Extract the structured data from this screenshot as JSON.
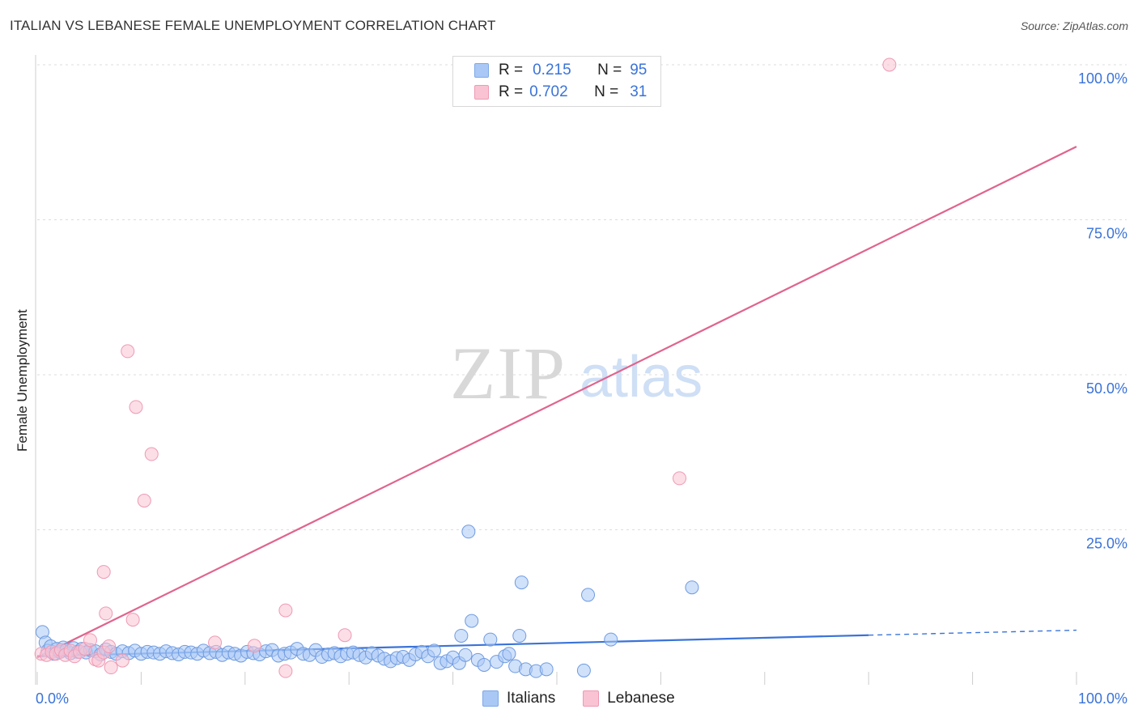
{
  "header": {
    "title": "ITALIAN VS LEBANESE FEMALE UNEMPLOYMENT CORRELATION CHART",
    "source": "Source: ZipAtlas.com"
  },
  "watermark": {
    "zip": "ZIP",
    "atlas": "atlas"
  },
  "legend": {
    "rows": [
      {
        "r_key": "R =",
        "r_val": "0.215",
        "n_key": "N =",
        "n_val": "95",
        "color": "#a9c8f5",
        "stroke": "#7fa8e6"
      },
      {
        "r_key": "R =",
        "r_val": "0.702",
        "n_key": "N =",
        "n_val": "31",
        "color": "#f9c3d3",
        "stroke": "#ee9ab3"
      }
    ]
  },
  "bottom_legend": {
    "italians": "Italians",
    "lebanese": "Lebanese"
  },
  "chart_data": {
    "type": "scatter",
    "title": "ITALIAN VS LEBANESE FEMALE UNEMPLOYMENT CORRELATION CHART",
    "xlabel": "",
    "ylabel": "Female Unemployment",
    "xlim": [
      0,
      100
    ],
    "ylim": [
      0,
      100
    ],
    "x_tick_labels": [
      "0.0%",
      "100.0%"
    ],
    "y_tick_labels": [
      "25.0%",
      "50.0%",
      "75.0%",
      "100.0%"
    ],
    "y_ticks": [
      25,
      50,
      75,
      100
    ],
    "grid": true,
    "legend_position": "top-center",
    "series": [
      {
        "name": "Italians",
        "color": "#a9c8f5",
        "stroke": "#6f9be0",
        "trend": {
          "x0": 0,
          "y0": 4.6,
          "x1": 80,
          "y1": 8.0,
          "dash_to": 100,
          "dash_y": 8.8,
          "color": "#3a73d8"
        },
        "points": [
          [
            0.5,
            8.5
          ],
          [
            0.8,
            6.8
          ],
          [
            1.0,
            5.5
          ],
          [
            1.3,
            6.2
          ],
          [
            1.6,
            5.0
          ],
          [
            1.9,
            5.8
          ],
          [
            2.2,
            5.3
          ],
          [
            2.5,
            6.0
          ],
          [
            2.8,
            5.6
          ],
          [
            3.2,
            5.1
          ],
          [
            3.5,
            5.9
          ],
          [
            3.9,
            5.3
          ],
          [
            4.3,
            5.8
          ],
          [
            4.7,
            5.2
          ],
          [
            5.1,
            5.6
          ],
          [
            5.6,
            5.4
          ],
          [
            6.1,
            4.9
          ],
          [
            6.6,
            5.7
          ],
          [
            7.1,
            5.3
          ],
          [
            7.6,
            5.0
          ],
          [
            8.2,
            5.4
          ],
          [
            8.8,
            5.1
          ],
          [
            9.4,
            5.5
          ],
          [
            10.0,
            5.0
          ],
          [
            10.6,
            5.3
          ],
          [
            11.2,
            5.2
          ],
          [
            11.8,
            5.0
          ],
          [
            12.4,
            5.4
          ],
          [
            13.0,
            5.1
          ],
          [
            13.6,
            4.9
          ],
          [
            14.2,
            5.3
          ],
          [
            14.8,
            5.2
          ],
          [
            15.4,
            5.0
          ],
          [
            16.0,
            5.5
          ],
          [
            16.6,
            5.1
          ],
          [
            17.2,
            5.3
          ],
          [
            17.8,
            4.8
          ],
          [
            18.4,
            5.2
          ],
          [
            19.0,
            5.0
          ],
          [
            19.6,
            4.7
          ],
          [
            20.2,
            5.3
          ],
          [
            20.8,
            5.1
          ],
          [
            21.4,
            4.9
          ],
          [
            22.0,
            5.4
          ],
          [
            22.6,
            5.6
          ],
          [
            23.2,
            4.7
          ],
          [
            23.8,
            5.0
          ],
          [
            24.4,
            5.2
          ],
          [
            25.0,
            5.8
          ],
          [
            25.6,
            5.0
          ],
          [
            26.2,
            4.8
          ],
          [
            26.8,
            5.6
          ],
          [
            27.4,
            4.5
          ],
          [
            28.0,
            4.9
          ],
          [
            28.6,
            5.1
          ],
          [
            29.2,
            4.6
          ],
          [
            29.8,
            5.0
          ],
          [
            30.4,
            5.2
          ],
          [
            31.0,
            4.8
          ],
          [
            31.6,
            4.4
          ],
          [
            32.2,
            5.1
          ],
          [
            32.8,
            4.7
          ],
          [
            33.4,
            4.2
          ],
          [
            34.0,
            3.8
          ],
          [
            34.6,
            4.3
          ],
          [
            35.2,
            4.5
          ],
          [
            35.8,
            4.0
          ],
          [
            36.4,
            4.9
          ],
          [
            37.0,
            5.3
          ],
          [
            37.6,
            4.6
          ],
          [
            38.2,
            5.5
          ],
          [
            38.8,
            3.5
          ],
          [
            39.4,
            3.8
          ],
          [
            40.0,
            4.4
          ],
          [
            40.6,
            3.5
          ],
          [
            41.2,
            4.8
          ],
          [
            41.8,
            10.3
          ],
          [
            42.4,
            4.0
          ],
          [
            43.0,
            3.2
          ],
          [
            43.6,
            7.3
          ],
          [
            44.2,
            3.7
          ],
          [
            45.0,
            4.6
          ],
          [
            45.4,
            5.0
          ],
          [
            46.0,
            3.0
          ],
          [
            47.0,
            2.5
          ],
          [
            48.0,
            2.2
          ],
          [
            49.0,
            2.5
          ],
          [
            52.6,
            2.3
          ],
          [
            40.8,
            7.9
          ],
          [
            41.5,
            24.7
          ],
          [
            46.4,
            7.9
          ],
          [
            46.6,
            16.5
          ],
          [
            53.0,
            14.5
          ],
          [
            55.2,
            7.3
          ],
          [
            63.0,
            15.7
          ]
        ]
      },
      {
        "name": "Lebanese",
        "color": "#f9c3d3",
        "stroke": "#ee9ab3",
        "trend": {
          "x0": 0,
          "y0": 4.4,
          "x1": 100,
          "y1": 86.8,
          "color": "#e0648e"
        },
        "points": [
          [
            0.4,
            5.0
          ],
          [
            0.9,
            4.8
          ],
          [
            1.4,
            5.3
          ],
          [
            1.8,
            5.0
          ],
          [
            2.3,
            5.6
          ],
          [
            2.7,
            4.8
          ],
          [
            3.2,
            5.5
          ],
          [
            3.6,
            4.6
          ],
          [
            4.1,
            5.3
          ],
          [
            4.6,
            5.8
          ],
          [
            5.1,
            7.2
          ],
          [
            5.6,
            4.1
          ],
          [
            5.9,
            3.9
          ],
          [
            6.4,
            5.2
          ],
          [
            6.6,
            11.5
          ],
          [
            6.4,
            18.2
          ],
          [
            6.9,
            6.2
          ],
          [
            7.1,
            2.8
          ],
          [
            8.2,
            3.9
          ],
          [
            8.7,
            53.8
          ],
          [
            9.2,
            10.5
          ],
          [
            9.5,
            44.8
          ],
          [
            11.0,
            37.2
          ],
          [
            10.3,
            29.7
          ],
          [
            17.1,
            6.8
          ],
          [
            20.9,
            6.3
          ],
          [
            23.9,
            12.0
          ],
          [
            23.9,
            2.2
          ],
          [
            29.6,
            8.0
          ],
          [
            61.8,
            33.3
          ],
          [
            82.0,
            100.0
          ]
        ]
      }
    ]
  }
}
